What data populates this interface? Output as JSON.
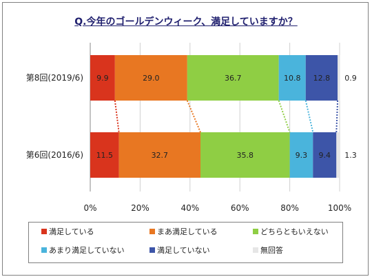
{
  "title": "Q.今年のゴールデンウィーク、満足していますか？",
  "chart_data": {
    "type": "bar",
    "orientation": "horizontal",
    "stacked": "percent",
    "categories": [
      "第8回(2019/6)",
      "第6回(2016/6)"
    ],
    "series": [
      {
        "name": "満足している",
        "color": "#d9341d",
        "values": [
          9.9,
          11.5
        ]
      },
      {
        "name": "まあ満足している",
        "color": "#e87722",
        "values": [
          29.0,
          32.7
        ]
      },
      {
        "name": "どちらともいえない",
        "color": "#8fce44",
        "values": [
          36.7,
          35.8
        ]
      },
      {
        "name": "あまり満足していない",
        "color": "#4ab4dc",
        "values": [
          10.8,
          9.3
        ]
      },
      {
        "name": "満足していない",
        "color": "#3d55a8",
        "values": [
          12.8,
          9.4
        ]
      },
      {
        "name": "無回答",
        "color": "#e6e6e6",
        "values": [
          0.9,
          1.3
        ]
      }
    ],
    "xlim": [
      0,
      100
    ],
    "xticks": [
      "0%",
      "20%",
      "40%",
      "60%",
      "80%",
      "100%"
    ],
    "grid": true,
    "legend_position": "bottom",
    "connector_lines": true
  }
}
